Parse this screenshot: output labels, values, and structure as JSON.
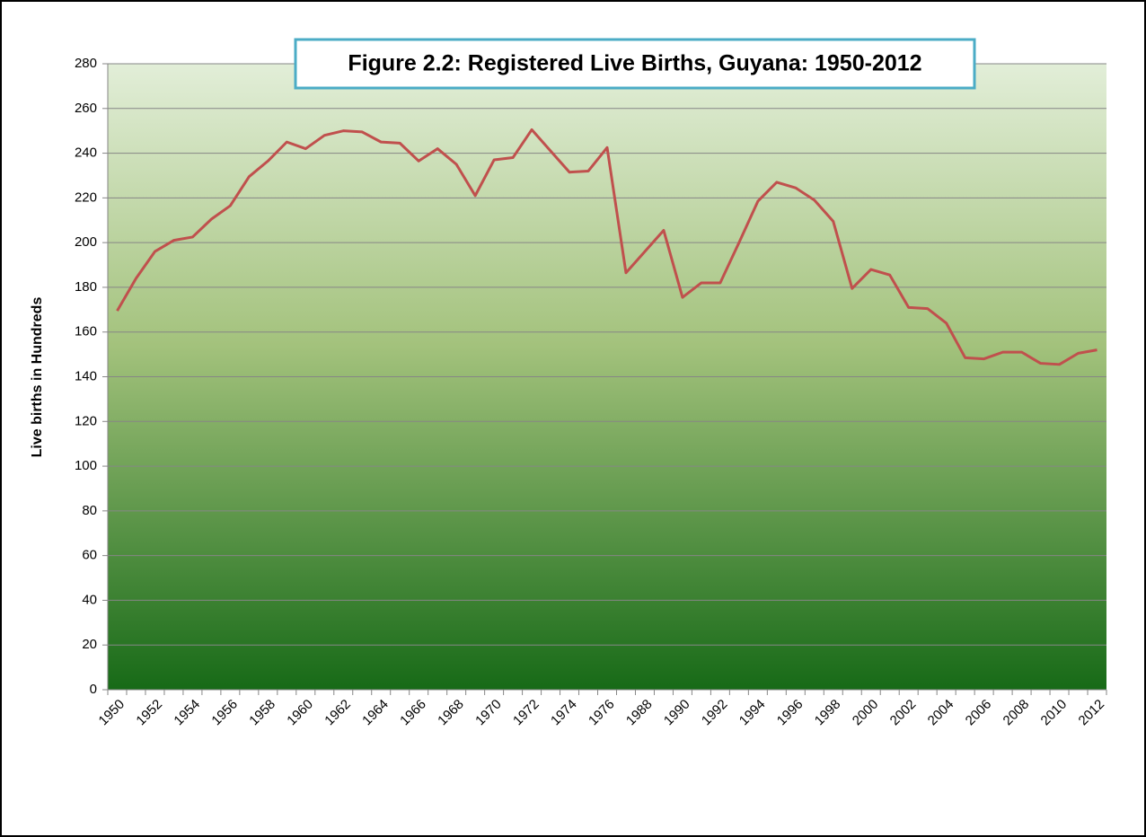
{
  "chart_data": {
    "type": "line",
    "title": "Figure 2.2:  Registered Live Births, Guyana: 1950-2012",
    "y_label": "Live births in Hundreds",
    "categories": [
      "1950",
      null,
      "1952",
      null,
      "1954",
      null,
      "1956",
      null,
      "1958",
      null,
      "1960",
      null,
      "1962",
      null,
      "1964",
      null,
      "1966",
      null,
      "1968",
      null,
      "1970",
      null,
      "1972",
      null,
      "1974",
      null,
      "1976",
      null,
      "1988",
      null,
      "1990",
      null,
      "1992",
      null,
      "1994",
      null,
      "1996",
      null,
      "1998",
      null,
      "2000",
      null,
      "2002",
      null,
      "2004",
      null,
      "2006",
      null,
      "2008",
      null,
      "2010",
      null,
      "2012"
    ],
    "values": [
      169.5,
      184,
      196,
      201,
      202.5,
      210.5,
      216.5,
      229.5,
      236.5,
      245,
      242,
      248,
      250,
      249.5,
      245,
      244.5,
      236.5,
      242,
      235,
      221,
      237,
      238,
      250.5,
      241,
      231.5,
      232,
      242.5,
      186.5,
      196,
      205.5,
      175.5,
      182,
      182,
      200,
      218.5,
      227,
      224.5,
      219,
      209.5,
      179.5,
      188,
      185.5,
      171,
      170.5,
      164,
      148.5,
      148,
      151,
      151,
      146,
      145.5,
      150.5,
      152
    ],
    "color": "#c0504d",
    "ylim": [
      0,
      280
    ],
    "yticks": [
      0,
      20,
      40,
      60,
      80,
      100,
      120,
      140,
      160,
      180,
      200,
      220,
      240,
      260,
      280
    ],
    "grid": true
  }
}
